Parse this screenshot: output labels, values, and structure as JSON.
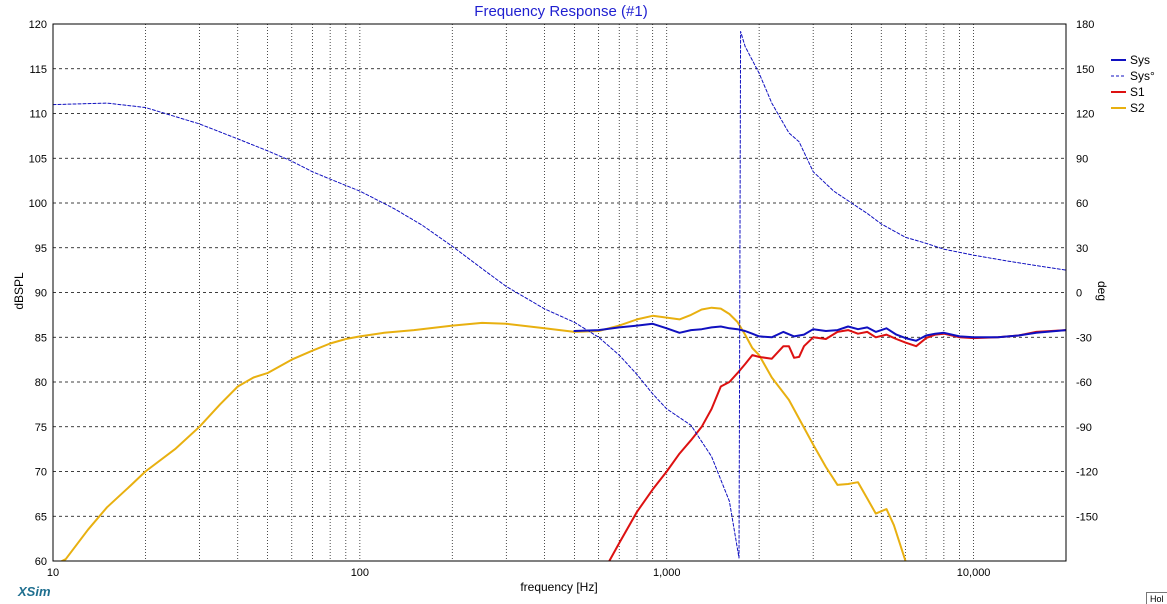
{
  "chart_data": {
    "type": "line",
    "title": "Frequency Response (#1)",
    "xlabel": "frequency [Hz]",
    "ylabel": "dBSPL",
    "y2label": "deg",
    "x_scale": "log",
    "xlim": [
      10,
      20000
    ],
    "ylim": [
      60,
      120
    ],
    "y2lim": [
      -180,
      180
    ],
    "grid": true,
    "legend_position": "right",
    "x_tick_labels": [
      {
        "value": 10,
        "label": "10"
      },
      {
        "value": 100,
        "label": "100"
      },
      {
        "value": 1000,
        "label": "1,000"
      },
      {
        "value": 10000,
        "label": "10,000"
      }
    ],
    "y_ticks": [
      60,
      65,
      70,
      75,
      80,
      85,
      90,
      95,
      100,
      105,
      110,
      115,
      120
    ],
    "y2_ticks": [
      -150,
      -120,
      -90,
      -60,
      -30,
      0,
      30,
      60,
      90,
      120,
      150,
      180
    ],
    "series": [
      {
        "name": "Sys",
        "color": "#1010c0",
        "axis": "left",
        "style": "solid",
        "points": [
          [
            500,
            85.7
          ],
          [
            600,
            85.8
          ],
          [
            700,
            86.1
          ],
          [
            800,
            86.3
          ],
          [
            900,
            86.5
          ],
          [
            1000,
            86.0
          ],
          [
            1100,
            85.5
          ],
          [
            1200,
            85.8
          ],
          [
            1300,
            85.9
          ],
          [
            1400,
            86.1
          ],
          [
            1500,
            86.2
          ],
          [
            1600,
            86.0
          ],
          [
            1700,
            85.9
          ],
          [
            1800,
            85.7
          ],
          [
            1900,
            85.4
          ],
          [
            2000,
            85.1
          ],
          [
            2200,
            85.0
          ],
          [
            2400,
            85.6
          ],
          [
            2600,
            85.1
          ],
          [
            2800,
            85.3
          ],
          [
            3000,
            85.9
          ],
          [
            3300,
            85.7
          ],
          [
            3600,
            85.8
          ],
          [
            3900,
            86.2
          ],
          [
            4200,
            85.9
          ],
          [
            4500,
            86.1
          ],
          [
            4800,
            85.6
          ],
          [
            5200,
            86.0
          ],
          [
            5600,
            85.3
          ],
          [
            6000,
            84.9
          ],
          [
            6500,
            84.6
          ],
          [
            7000,
            85.2
          ],
          [
            7500,
            85.4
          ],
          [
            8000,
            85.5
          ],
          [
            9000,
            85.1
          ],
          [
            10000,
            85.0
          ],
          [
            12000,
            85.0
          ],
          [
            14000,
            85.2
          ],
          [
            16000,
            85.5
          ],
          [
            20000,
            85.8
          ]
        ]
      },
      {
        "name": "Sys°",
        "color": "#1010c0",
        "axis": "right",
        "style": "dashed",
        "points": [
          [
            10,
            126
          ],
          [
            15,
            127
          ],
          [
            20,
            124
          ],
          [
            30,
            113
          ],
          [
            40,
            103
          ],
          [
            50,
            95
          ],
          [
            60,
            88
          ],
          [
            70,
            81
          ],
          [
            80,
            76
          ],
          [
            100,
            68
          ],
          [
            130,
            56
          ],
          [
            160,
            45
          ],
          [
            200,
            31
          ],
          [
            250,
            16
          ],
          [
            300,
            4
          ],
          [
            400,
            -11
          ],
          [
            500,
            -20
          ],
          [
            600,
            -30
          ],
          [
            700,
            -42
          ],
          [
            800,
            -55
          ],
          [
            900,
            -68
          ],
          [
            1000,
            -78
          ],
          [
            1200,
            -89
          ],
          [
            1400,
            -110
          ],
          [
            1600,
            -140
          ],
          [
            1720,
            -178
          ],
          [
            1740,
            175
          ],
          [
            1800,
            165
          ],
          [
            2000,
            147
          ],
          [
            2200,
            127
          ],
          [
            2500,
            107
          ],
          [
            2700,
            101
          ],
          [
            3000,
            81
          ],
          [
            3500,
            68
          ],
          [
            4000,
            60
          ],
          [
            4500,
            53
          ],
          [
            5000,
            46
          ],
          [
            6000,
            37
          ],
          [
            7000,
            33
          ],
          [
            8000,
            29
          ],
          [
            10000,
            25
          ],
          [
            13000,
            21
          ],
          [
            16000,
            18
          ],
          [
            20000,
            15
          ]
        ]
      },
      {
        "name": "S1",
        "color": "#dd1111",
        "axis": "left",
        "style": "solid",
        "points": [
          [
            650,
            60
          ],
          [
            700,
            62
          ],
          [
            800,
            65.5
          ],
          [
            900,
            68
          ],
          [
            1000,
            70
          ],
          [
            1100,
            72
          ],
          [
            1200,
            73.5
          ],
          [
            1300,
            75
          ],
          [
            1400,
            77
          ],
          [
            1500,
            79.5
          ],
          [
            1600,
            80
          ],
          [
            1700,
            81
          ],
          [
            1800,
            82
          ],
          [
            1900,
            83
          ],
          [
            2000,
            82.8
          ],
          [
            2200,
            82.6
          ],
          [
            2400,
            84
          ],
          [
            2500,
            84
          ],
          [
            2600,
            82.7
          ],
          [
            2700,
            82.8
          ],
          [
            2800,
            84
          ],
          [
            3000,
            85
          ],
          [
            3300,
            84.8
          ],
          [
            3600,
            85.6
          ],
          [
            3900,
            85.8
          ],
          [
            4200,
            85.4
          ],
          [
            4500,
            85.6
          ],
          [
            4800,
            85.0
          ],
          [
            5200,
            85.3
          ],
          [
            5600,
            84.8
          ],
          [
            6000,
            84.4
          ],
          [
            6500,
            84.0
          ],
          [
            7000,
            84.9
          ],
          [
            7500,
            85.3
          ],
          [
            8000,
            85.4
          ],
          [
            9000,
            85.0
          ],
          [
            10000,
            84.9
          ],
          [
            12000,
            85.0
          ],
          [
            14000,
            85.2
          ],
          [
            16000,
            85.6
          ],
          [
            20000,
            85.8
          ]
        ]
      },
      {
        "name": "S2",
        "color": "#e8b010",
        "axis": "left",
        "style": "solid",
        "points": [
          [
            10,
            59.5
          ],
          [
            11,
            60.2
          ],
          [
            13,
            63.5
          ],
          [
            15,
            66
          ],
          [
            18,
            68.5
          ],
          [
            20,
            70
          ],
          [
            25,
            72.5
          ],
          [
            30,
            75
          ],
          [
            35,
            77.5
          ],
          [
            40,
            79.5
          ],
          [
            45,
            80.5
          ],
          [
            50,
            81
          ],
          [
            60,
            82.5
          ],
          [
            70,
            83.5
          ],
          [
            80,
            84.3
          ],
          [
            90,
            84.8
          ],
          [
            100,
            85.1
          ],
          [
            120,
            85.5
          ],
          [
            150,
            85.8
          ],
          [
            200,
            86.3
          ],
          [
            250,
            86.6
          ],
          [
            300,
            86.5
          ],
          [
            400,
            86.0
          ],
          [
            500,
            85.6
          ],
          [
            600,
            85.7
          ],
          [
            700,
            86.3
          ],
          [
            800,
            87.0
          ],
          [
            900,
            87.4
          ],
          [
            1000,
            87.2
          ],
          [
            1100,
            87.0
          ],
          [
            1200,
            87.5
          ],
          [
            1300,
            88.1
          ],
          [
            1400,
            88.3
          ],
          [
            1500,
            88.2
          ],
          [
            1600,
            87.6
          ],
          [
            1700,
            86.7
          ],
          [
            1800,
            85.3
          ],
          [
            1900,
            83.8
          ],
          [
            2000,
            83.0
          ],
          [
            2200,
            80.5
          ],
          [
            2500,
            78.0
          ],
          [
            3000,
            73.0
          ],
          [
            3300,
            70.5
          ],
          [
            3600,
            68.5
          ],
          [
            3900,
            68.6
          ],
          [
            4200,
            68.8
          ],
          [
            4500,
            67.0
          ],
          [
            4800,
            65.3
          ],
          [
            5200,
            65.8
          ],
          [
            5500,
            64.0
          ],
          [
            6000,
            60.0
          ]
        ]
      }
    ]
  },
  "branding": {
    "label": "XSim"
  },
  "corner_tab": {
    "label": "Hol"
  }
}
